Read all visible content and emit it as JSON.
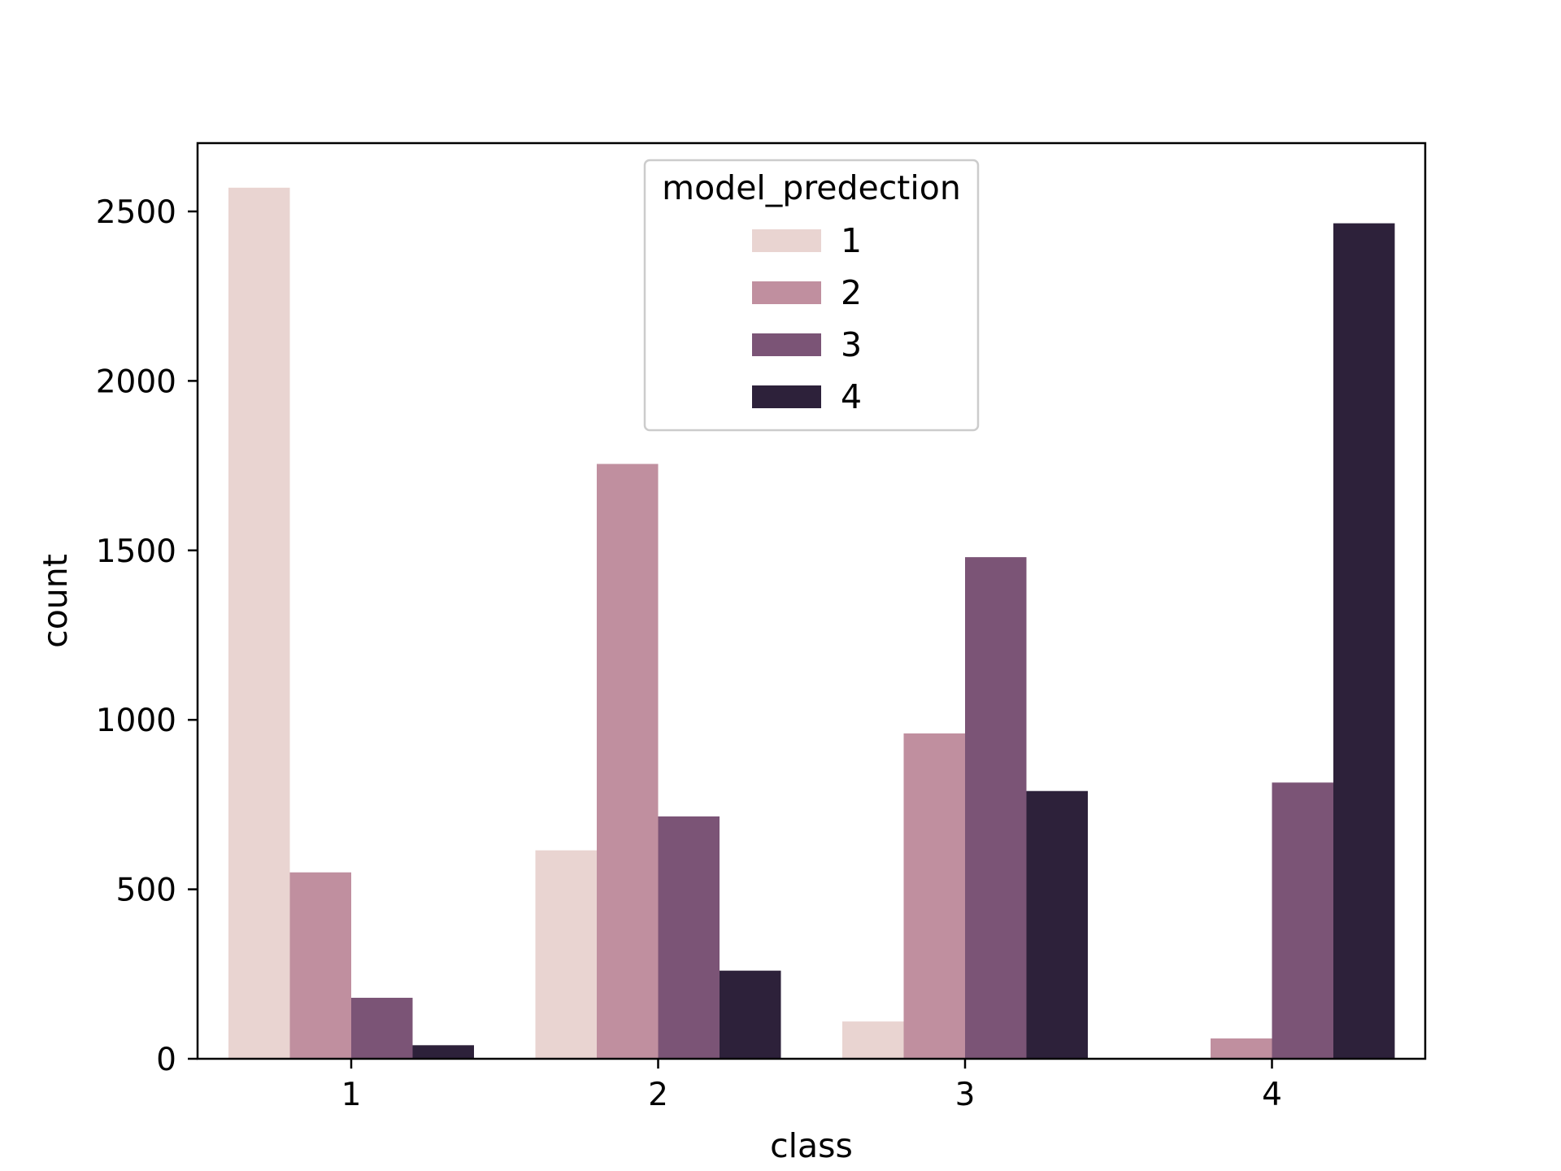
{
  "chart_data": {
    "type": "bar",
    "xlabel": "class",
    "ylabel": "count",
    "categories": [
      "1",
      "2",
      "3",
      "4"
    ],
    "ylim": [
      0,
      2700
    ],
    "yticks": [
      0,
      500,
      1000,
      1500,
      2000,
      2500
    ],
    "grid": false,
    "legend": {
      "title": "model_predection",
      "position": "upper-center"
    },
    "series": [
      {
        "name": "1",
        "color": "#e9d4d1",
        "values": [
          2570,
          615,
          110,
          0
        ]
      },
      {
        "name": "2",
        "color": "#c08f9f",
        "values": [
          550,
          1755,
          960,
          60
        ]
      },
      {
        "name": "3",
        "color": "#7b5476",
        "values": [
          180,
          715,
          1480,
          815
        ]
      },
      {
        "name": "4",
        "color": "#2d213a",
        "values": [
          40,
          260,
          790,
          2465
        ]
      }
    ]
  }
}
